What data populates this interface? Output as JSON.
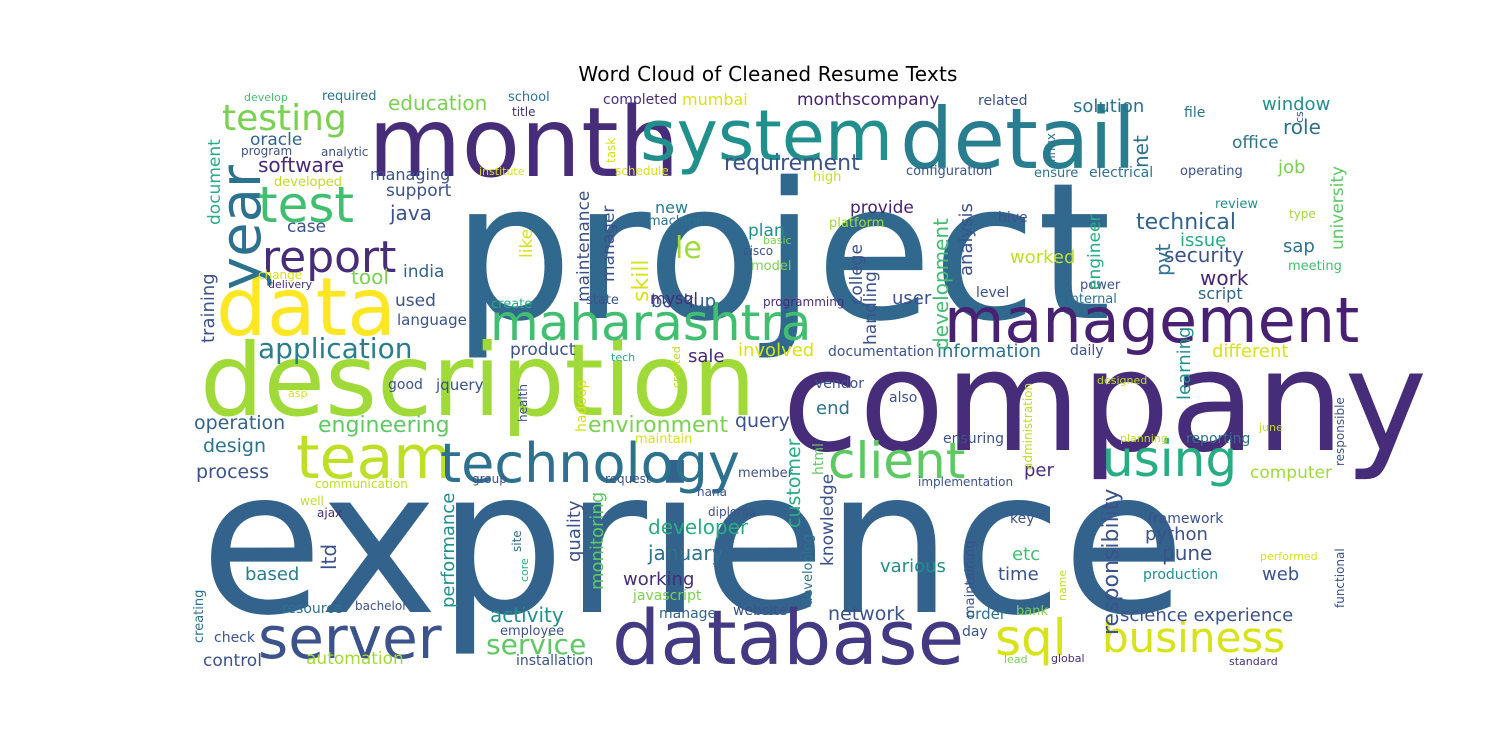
{
  "title": "Word Cloud of Cleaned Resume Texts",
  "palette": {
    "dark_purple": "#472c7a",
    "purple": "#482173",
    "indigo": "#414487",
    "slate_blue": "#3b528b",
    "steel_blue": "#33638d",
    "blue": "#2c728e",
    "teal_blue": "#287d8e",
    "teal": "#21908d",
    "sea_green": "#27ad81",
    "green": "#42be71",
    "light_green": "#5ec962",
    "lime": "#a0da39",
    "yellow_green": "#bddf26",
    "yellow": "#fde725",
    "pale_lime": "#d8e219"
  },
  "words": [
    {
      "id": "w-experience",
      "text": "exprience",
      "c": "#33638d"
    },
    {
      "id": "w-project",
      "text": "project",
      "c": "#31688e"
    },
    {
      "id": "w-company",
      "text": "company",
      "c": "#472c7a"
    },
    {
      "id": "w-description",
      "text": "description",
      "c": "#a0da39"
    },
    {
      "id": "w-month",
      "text": "month",
      "c": "#472c7a"
    },
    {
      "id": "w-system",
      "text": "system",
      "c": "#21908d"
    },
    {
      "id": "w-detail",
      "text": "detail",
      "c": "#287d8e"
    },
    {
      "id": "w-database",
      "text": "database",
      "c": "#443983"
    },
    {
      "id": "w-management",
      "text": "management",
      "c": "#482173"
    },
    {
      "id": "w-data",
      "text": "data",
      "c": "#fde725"
    },
    {
      "id": "w-team",
      "text": "team",
      "c": "#bddf26"
    },
    {
      "id": "w-technology",
      "text": "technology",
      "c": "#2c728e"
    },
    {
      "id": "w-maharashtra",
      "text": "maharashtra",
      "c": "#42be71"
    },
    {
      "id": "w-server",
      "text": "server",
      "c": "#3b528b"
    },
    {
      "id": "w-client",
      "text": "client",
      "c": "#5ec962"
    },
    {
      "id": "w-using",
      "text": "using",
      "c": "#27ad81"
    },
    {
      "id": "w-sql",
      "text": "sql",
      "c": "#d8e219"
    },
    {
      "id": "w-business",
      "text": "business",
      "c": "#d8e219"
    },
    {
      "id": "w-year",
      "text": "year",
      "c": "#2c728e"
    },
    {
      "id": "w-test",
      "text": "test",
      "c": "#42be71"
    },
    {
      "id": "w-report",
      "text": "report",
      "c": "#472c7a"
    },
    {
      "id": "w-testing",
      "text": "testing",
      "c": "#7ad151"
    },
    {
      "id": "w-application",
      "text": "application",
      "c": "#287d8e"
    },
    {
      "id": "w-engineering",
      "text": "engineering",
      "c": "#5ec962"
    },
    {
      "id": "w-environment",
      "text": "environment",
      "c": "#7ad151"
    },
    {
      "id": "w-service",
      "text": "service",
      "c": "#5ec962"
    },
    {
      "id": "w-requirement",
      "text": "requirement",
      "c": "#3b528b"
    },
    {
      "id": "w-software",
      "text": "software",
      "c": "#482878"
    },
    {
      "id": "w-education",
      "text": "education",
      "c": "#7ad151"
    },
    {
      "id": "w-monthscompany",
      "text": "monthscompany",
      "c": "#482173"
    },
    {
      "id": "w-solution",
      "text": "solution",
      "c": "#2c728e"
    },
    {
      "id": "w-window",
      "text": "window",
      "c": "#21908d"
    },
    {
      "id": "w-role",
      "text": "role",
      "c": "#2c728e"
    },
    {
      "id": "w-office",
      "text": "office",
      "c": "#2c728e"
    },
    {
      "id": "w-oracle",
      "text": "oracle",
      "c": "#33638d"
    },
    {
      "id": "w-mumbai",
      "text": "mumbai",
      "c": "#d8e219"
    },
    {
      "id": "w-technical",
      "text": "technical",
      "c": "#33638d"
    },
    {
      "id": "w-issue",
      "text": "issue",
      "c": "#27ad81"
    },
    {
      "id": "w-security",
      "text": "security",
      "c": "#3b528b"
    },
    {
      "id": "w-sap",
      "text": "sap",
      "c": "#2c728e"
    },
    {
      "id": "w-job",
      "text": "job",
      "c": "#7ad151"
    },
    {
      "id": "w-work",
      "text": "work",
      "c": "#482173"
    },
    {
      "id": "w-script",
      "text": "script",
      "c": "#33638d"
    },
    {
      "id": "w-worked",
      "text": "worked",
      "c": "#bddf26"
    },
    {
      "id": "w-java",
      "text": "java",
      "c": "#3b528b"
    },
    {
      "id": "w-support",
      "text": "support",
      "c": "#3b528b"
    },
    {
      "id": "w-managing",
      "text": "managing",
      "c": "#3b528b"
    },
    {
      "id": "w-case",
      "text": "case",
      "c": "#3b528b"
    },
    {
      "id": "w-tool",
      "text": "tool",
      "c": "#7ad151"
    },
    {
      "id": "w-india",
      "text": "india",
      "c": "#33638d"
    },
    {
      "id": "w-used",
      "text": "used",
      "c": "#3b528b"
    },
    {
      "id": "w-language",
      "text": "language",
      "c": "#3b528b"
    },
    {
      "id": "w-le",
      "text": "le",
      "c": "#a0da39"
    },
    {
      "id": "w-new",
      "text": "new",
      "c": "#287d8e"
    },
    {
      "id": "w-plan",
      "text": "plan",
      "c": "#21908d"
    },
    {
      "id": "w-provide",
      "text": "provide",
      "c": "#482173"
    },
    {
      "id": "w-backup",
      "text": "backup",
      "c": "#33638d"
    },
    {
      "id": "w-mysql",
      "text": "mysql",
      "c": "#472c7a"
    },
    {
      "id": "w-user",
      "text": "user",
      "c": "#3b528b"
    },
    {
      "id": "w-information",
      "text": "information",
      "c": "#2c728e"
    },
    {
      "id": "w-different",
      "text": "different",
      "c": "#d8e219"
    },
    {
      "id": "w-involved",
      "text": "involved",
      "c": "#d8e219"
    },
    {
      "id": "w-sale",
      "text": "sale",
      "c": "#482878"
    },
    {
      "id": "w-product",
      "text": "product",
      "c": "#3b528b"
    },
    {
      "id": "w-documentation",
      "text": "documentation",
      "c": "#3b528b"
    },
    {
      "id": "w-operation",
      "text": "operation",
      "c": "#33638d"
    },
    {
      "id": "w-design",
      "text": "design",
      "c": "#2c728e"
    },
    {
      "id": "w-process",
      "text": "process",
      "c": "#3b528b"
    },
    {
      "id": "w-query",
      "text": "query",
      "c": "#3b528b"
    },
    {
      "id": "w-end",
      "text": "end",
      "c": "#2c728e"
    },
    {
      "id": "w-developer",
      "text": "developer",
      "c": "#27ad81"
    },
    {
      "id": "w-january",
      "text": "january",
      "c": "#2c728e"
    },
    {
      "id": "w-working",
      "text": "working",
      "c": "#472c7a"
    },
    {
      "id": "w-activity",
      "text": "activity",
      "c": "#21908d"
    },
    {
      "id": "w-automation",
      "text": "automation",
      "c": "#a0da39"
    },
    {
      "id": "w-control",
      "text": "control",
      "c": "#3b528b"
    },
    {
      "id": "w-based",
      "text": "based",
      "c": "#287d8e"
    },
    {
      "id": "w-network",
      "text": "network",
      "c": "#3b528b"
    },
    {
      "id": "w-various",
      "text": "various",
      "c": "#21908d"
    },
    {
      "id": "w-time",
      "text": "time",
      "c": "#3b528b"
    },
    {
      "id": "w-etc",
      "text": "etc",
      "c": "#42be71"
    },
    {
      "id": "w-pune",
      "text": "pune",
      "c": "#3b528b"
    },
    {
      "id": "w-python",
      "text": "python",
      "c": "#3b528b"
    },
    {
      "id": "w-web",
      "text": "web",
      "c": "#3b528b"
    },
    {
      "id": "w-per",
      "text": "per",
      "c": "#472c7a"
    },
    {
      "id": "w-computer",
      "text": "computer",
      "c": "#a0da39"
    },
    {
      "id": "w-science-experience",
      "text": "science experience",
      "c": "#3b528b"
    },
    {
      "id": "w-framework",
      "text": "framework",
      "c": "#3b528b"
    },
    {
      "id": "w-production",
      "text": "production",
      "c": "#21908d"
    },
    {
      "id": "w-good",
      "text": "good",
      "c": "#3b528b"
    },
    {
      "id": "w-jquery",
      "text": "jquery",
      "c": "#3b528b"
    },
    {
      "id": "w-vendor",
      "text": "vendor",
      "c": "#3b528b"
    },
    {
      "id": "w-also",
      "text": "also",
      "c": "#3b528b"
    },
    {
      "id": "w-daily",
      "text": "daily",
      "c": "#3b528b"
    },
    {
      "id": "w-reporting",
      "text": "reporting",
      "c": "#2c728e"
    },
    {
      "id": "w-ensuring",
      "text": "ensuring",
      "c": "#3b528b"
    },
    {
      "id": "w-key",
      "text": "key",
      "c": "#3b528b"
    },
    {
      "id": "w-order",
      "text": "order",
      "c": "#2c728e"
    },
    {
      "id": "w-bank",
      "text": "bank",
      "c": "#7ad151"
    },
    {
      "id": "w-day",
      "text": "day",
      "c": "#3b528b"
    },
    {
      "id": "w-resource",
      "text": "resource",
      "c": "#2c728e"
    },
    {
      "id": "w-bachelor",
      "text": "bachelor",
      "c": "#3b528b"
    },
    {
      "id": "w-check",
      "text": "check",
      "c": "#3b528b"
    },
    {
      "id": "w-employee",
      "text": "employee",
      "c": "#3b528b"
    },
    {
      "id": "w-manage",
      "text": "manage",
      "c": "#33638d"
    },
    {
      "id": "w-website",
      "text": "website",
      "c": "#3b528b"
    },
    {
      "id": "w-installation",
      "text": "installation",
      "c": "#3b528b"
    },
    {
      "id": "w-javascript",
      "text": "javascript",
      "c": "#7ad151"
    },
    {
      "id": "w-diploma",
      "text": "diploma",
      "c": "#3b528b"
    },
    {
      "id": "w-member",
      "text": "member",
      "c": "#3b528b"
    },
    {
      "id": "w-hana",
      "text": "hana",
      "c": "#3b528b"
    },
    {
      "id": "w-request",
      "text": "request",
      "c": "#3b528b"
    },
    {
      "id": "w-implementation",
      "text": "implementation",
      "c": "#3b528b"
    },
    {
      "id": "w-communication",
      "text": "communication",
      "c": "#bddf26"
    },
    {
      "id": "w-group",
      "text": "group",
      "c": "#3b528b"
    },
    {
      "id": "w-maintain",
      "text": "maintain",
      "c": "#d8e219"
    },
    {
      "id": "w-ajax",
      "text": "ajax",
      "c": "#472c7a"
    },
    {
      "id": "w-well",
      "text": "well",
      "c": "#bddf26"
    },
    {
      "id": "w-asp",
      "text": "asp",
      "c": "#d8e219"
    },
    {
      "id": "w-tech",
      "text": "tech",
      "c": "#27ad81"
    },
    {
      "id": "w-create",
      "text": "create",
      "c": "#27ad81"
    },
    {
      "id": "w-state",
      "text": "state",
      "c": "#3b528b"
    },
    {
      "id": "w-programming",
      "text": "programming",
      "c": "#472c7a"
    },
    {
      "id": "w-model",
      "text": "model",
      "c": "#7ad151"
    },
    {
      "id": "w-basic",
      "text": "basic",
      "c": "#7ad151"
    },
    {
      "id": "w-cisco",
      "text": "cisco",
      "c": "#3b528b"
    },
    {
      "id": "w-machine",
      "text": "machine",
      "c": "#2c728e"
    },
    {
      "id": "w-platform",
      "text": "platform",
      "c": "#a0da39"
    },
    {
      "id": "w-hive",
      "text": "hive",
      "c": "#3b528b"
    },
    {
      "id": "w-level",
      "text": "level",
      "c": "#3b528b"
    },
    {
      "id": "w-internal",
      "text": "internal",
      "c": "#2c728e"
    },
    {
      "id": "w-power",
      "text": "power",
      "c": "#3b528b"
    },
    {
      "id": "w-meeting",
      "text": "meeting",
      "c": "#42be71"
    },
    {
      "id": "w-review",
      "text": "review",
      "c": "#21908d"
    },
    {
      "id": "w-type",
      "text": "type",
      "c": "#a0da39"
    },
    {
      "id": "w-high",
      "text": "high",
      "c": "#bddf26"
    },
    {
      "id": "w-configuration",
      "text": "configuration",
      "c": "#3b528b"
    },
    {
      "id": "w-ensure",
      "text": "ensure",
      "c": "#2c728e"
    },
    {
      "id": "w-electrical",
      "text": "electrical",
      "c": "#2c728e"
    },
    {
      "id": "w-operating",
      "text": "operating",
      "c": "#3b528b"
    },
    {
      "id": "w-related",
      "text": "related",
      "c": "#3b528b"
    },
    {
      "id": "w-file",
      "text": "file",
      "c": "#2c728e"
    },
    {
      "id": "w-completed",
      "text": "completed",
      "c": "#472c7a"
    },
    {
      "id": "w-school",
      "text": "school",
      "c": "#2c728e"
    },
    {
      "id": "w-title",
      "text": "title",
      "c": "#472c7a"
    },
    {
      "id": "w-required",
      "text": "required",
      "c": "#2c728e"
    },
    {
      "id": "w-develop",
      "text": "develop",
      "c": "#42be71"
    },
    {
      "id": "w-analytic",
      "text": "analytic",
      "c": "#3b528b"
    },
    {
      "id": "w-program",
      "text": "program",
      "c": "#3b528b"
    },
    {
      "id": "w-developed",
      "text": "developed",
      "c": "#bddf26"
    },
    {
      "id": "w-institute",
      "text": "institute",
      "c": "#d8e219"
    },
    {
      "id": "w-schedule",
      "text": "schedule",
      "c": "#d8e219"
    },
    {
      "id": "w-change",
      "text": "change",
      "c": "#d8e219"
    },
    {
      "id": "w-delivery",
      "text": "delivery",
      "c": "#472c7a"
    },
    {
      "id": "w-designed",
      "text": "designed",
      "c": "#bddf26"
    },
    {
      "id": "w-planning",
      "text": "planning",
      "c": "#bddf26"
    },
    {
      "id": "w-june",
      "text": "june",
      "c": "#bddf26"
    },
    {
      "id": "w-performed",
      "text": "performed",
      "c": "#d8e219"
    },
    {
      "id": "w-lead",
      "text": "lead",
      "c": "#7ad151"
    },
    {
      "id": "w-global",
      "text": "global",
      "c": "#472c7a"
    },
    {
      "id": "w-standard",
      "text": "standard",
      "c": "#472c7a"
    },
    {
      "id": "w-document",
      "text": "document",
      "c": "#27ad81"
    },
    {
      "id": "w-training",
      "text": "training",
      "c": "#3b528b"
    },
    {
      "id": "w-creating",
      "text": "creating",
      "c": "#2c728e"
    },
    {
      "id": "w-task",
      "text": "task",
      "c": "#d8e219"
    },
    {
      "id": "w-maintenance",
      "text": "maintenance",
      "c": "#3b528b"
    },
    {
      "id": "w-manager",
      "text": "manager",
      "c": "#3b528b"
    },
    {
      "id": "w-like",
      "text": "like",
      "c": "#d8e219"
    },
    {
      "id": "w-skill",
      "text": "skill",
      "c": "#d8e219"
    },
    {
      "id": "w-college",
      "text": "college",
      "c": "#3b528b"
    },
    {
      "id": "w-handling",
      "text": "handling",
      "c": "#3b528b"
    },
    {
      "id": "w-development",
      "text": "development",
      "c": "#42be71"
    },
    {
      "id": "w-analysis",
      "text": "analysis",
      "c": "#3b528b"
    },
    {
      "id": "w-net",
      "text": "net",
      "c": "#2c728e"
    },
    {
      "id": "w-pvt",
      "text": "pvt",
      "c": "#2c728e"
    },
    {
      "id": "w-engineer",
      "text": "engineer",
      "c": "#27ad81"
    },
    {
      "id": "w-linux",
      "text": "linux",
      "c": "#2c728e"
    },
    {
      "id": "w-university",
      "text": "university",
      "c": "#5ec962"
    },
    {
      "id": "w-cs",
      "text": "cs",
      "c": "#3b528b"
    },
    {
      "id": "w-learning",
      "text": "learning",
      "c": "#21908d"
    },
    {
      "id": "w-responsibility",
      "text": "responsibility",
      "c": "#3b528b"
    },
    {
      "id": "w-administration",
      "text": "administration",
      "c": "#bddf26"
    },
    {
      "id": "w-responsible",
      "text": "responsible",
      "c": "#3b528b"
    },
    {
      "id": "w-functional",
      "text": "functional",
      "c": "#3b528b"
    },
    {
      "id": "w-quality",
      "text": "quality",
      "c": "#3b528b"
    },
    {
      "id": "w-monitoring",
      "text": "monitoring",
      "c": "#5ec962"
    },
    {
      "id": "w-performance",
      "text": "performance",
      "c": "#21908d"
    },
    {
      "id": "w-hadoop",
      "text": "hadoop",
      "c": "#d8e219"
    },
    {
      "id": "w-health",
      "text": "health",
      "c": "#3b528b"
    },
    {
      "id": "w-site",
      "text": "site",
      "c": "#2c728e"
    },
    {
      "id": "w-core",
      "text": "core",
      "c": "#27ad81"
    },
    {
      "id": "w-created",
      "text": "created",
      "c": "#bddf26"
    },
    {
      "id": "w-ltd",
      "text": "ltd",
      "c": "#3b528b"
    },
    {
      "id": "w-customer",
      "text": "customer",
      "c": "#27ad81"
    },
    {
      "id": "w-html",
      "text": "html",
      "c": "#5ec962"
    },
    {
      "id": "w-knowledge",
      "text": "knowledge",
      "c": "#3b528b"
    },
    {
      "id": "w-developing",
      "text": "developing",
      "c": "#2c728e"
    },
    {
      "id": "w-maintaining",
      "text": "maintaining",
      "c": "#3b528b"
    },
    {
      "id": "w-name",
      "text": "name",
      "c": "#bddf26"
    }
  ]
}
